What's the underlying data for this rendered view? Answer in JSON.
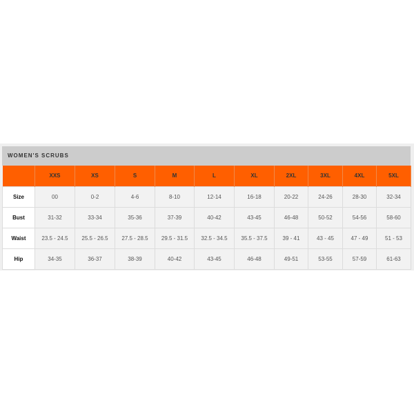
{
  "title": "WOMEN'S SCRUBS",
  "colors": {
    "header": "#ff5f00",
    "title_bar": "#cccccc",
    "cell": "#f2f2f2"
  },
  "columns": [
    "XXS",
    "XS",
    "S",
    "M",
    "L",
    "XL",
    "2XL",
    "3XL",
    "4XL",
    "5XL"
  ],
  "rows": [
    {
      "label": "Size",
      "values": [
        "00",
        "0-2",
        "4-6",
        "8-10",
        "12-14",
        "16-18",
        "20-22",
        "24-26",
        "28-30",
        "32-34"
      ]
    },
    {
      "label": "Bust",
      "values": [
        "31-32",
        "33-34",
        "35-36",
        "37-39",
        "40-42",
        "43-45",
        "46-48",
        "50-52",
        "54-56",
        "58-60"
      ]
    },
    {
      "label": "Waist",
      "values": [
        "23.5 - 24.5",
        "25.5 - 26.5",
        "27.5 - 28.5",
        "29.5 - 31.5",
        "32.5 - 34.5",
        "35.5 - 37.5",
        "39 - 41",
        "43 - 45",
        "47 - 49",
        "51 - 53"
      ]
    },
    {
      "label": "Hip",
      "values": [
        "34-35",
        "36-37",
        "38-39",
        "40-42",
        "43-45",
        "46-48",
        "49-51",
        "53-55",
        "57-59",
        "61-63"
      ]
    }
  ]
}
